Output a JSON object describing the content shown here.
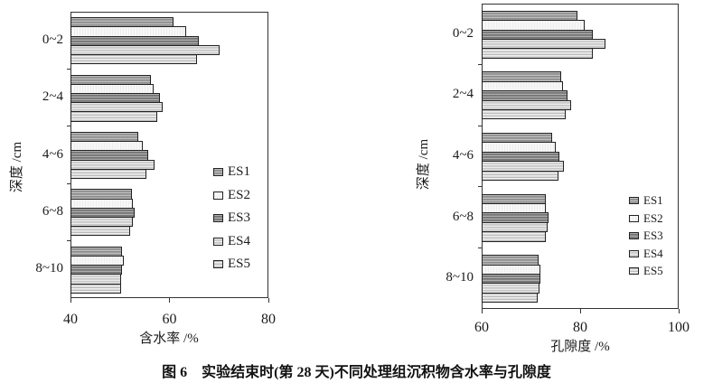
{
  "caption": "图 6　实验结束时(第 28 天)不同处理组沉积物含水率与孔隙度",
  "series_colors": [
    "#9c9c9c",
    "#f7f7f7",
    "#838383",
    "#d3d3d3",
    "#dcdcdc"
  ],
  "bar_border_color": "#222222",
  "chart_data": [
    {
      "type": "bar",
      "orientation": "horizontal",
      "title": "",
      "xlabel": "含水率 /%",
      "ylabel": "深度 /cm",
      "xlim": [
        40,
        80
      ],
      "xticks": [
        "40",
        "60",
        "80"
      ],
      "grid": false,
      "legend_position": "inside-right",
      "categories": [
        "0~2",
        "2~4",
        "4~6",
        "6~8",
        "8~10"
      ],
      "series": [
        {
          "name": "ES1",
          "values": [
            60.8,
            56.2,
            53.7,
            52.4,
            50.4
          ]
        },
        {
          "name": "ES2",
          "values": [
            63.3,
            56.8,
            54.7,
            52.6,
            50.8
          ]
        },
        {
          "name": "ES3",
          "values": [
            66.0,
            58.0,
            55.7,
            52.9,
            50.5
          ]
        },
        {
          "name": "ES4",
          "values": [
            70.2,
            58.6,
            57.0,
            52.6,
            50.3
          ]
        },
        {
          "name": "ES5",
          "values": [
            65.6,
            57.6,
            55.3,
            52.0,
            50.3
          ]
        }
      ]
    },
    {
      "type": "bar",
      "orientation": "horizontal",
      "title": "",
      "xlabel": "孔隙度 /%",
      "ylabel": "深度 /cm",
      "xlim": [
        60,
        100
      ],
      "xticks": [
        "60",
        "80",
        "100"
      ],
      "grid": false,
      "legend_position": "inside-right",
      "categories": [
        "0~2",
        "2~4",
        "4~6",
        "6~8",
        "8~10"
      ],
      "series": [
        {
          "name": "ES1",
          "values": [
            79.4,
            76.2,
            74.4,
            73.0,
            71.6
          ]
        },
        {
          "name": "ES2",
          "values": [
            80.9,
            76.5,
            75.0,
            73.1,
            71.9
          ]
        },
        {
          "name": "ES3",
          "values": [
            82.6,
            77.4,
            75.8,
            73.6,
            71.9
          ]
        },
        {
          "name": "ES4",
          "values": [
            85.2,
            78.1,
            76.7,
            73.4,
            71.7
          ]
        },
        {
          "name": "ES5",
          "values": [
            82.5,
            77.0,
            75.6,
            73.0,
            71.4
          ]
        }
      ]
    }
  ]
}
